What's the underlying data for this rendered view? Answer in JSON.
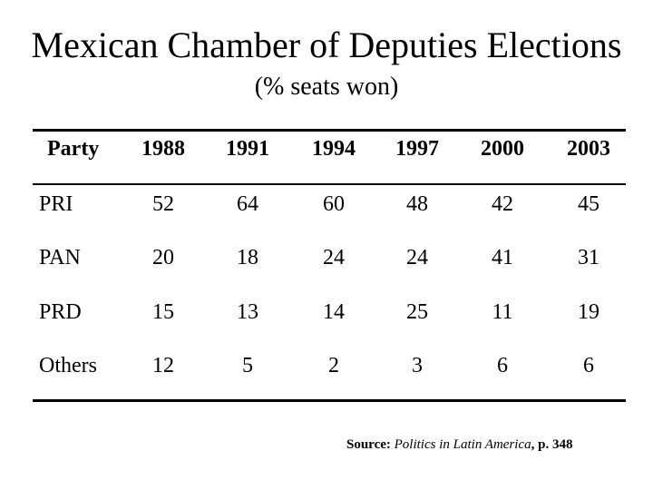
{
  "chart_data": {
    "type": "table",
    "title": "Mexican Chamber of Deputies Elections",
    "subtitle": "(% seats won)",
    "header_label": "Party",
    "columns": [
      "1988",
      "1991",
      "1994",
      "1997",
      "2000",
      "2003"
    ],
    "rows": [
      {
        "party": "PRI",
        "values": [
          52,
          64,
          60,
          48,
          42,
          45
        ]
      },
      {
        "party": "PAN",
        "values": [
          20,
          18,
          24,
          24,
          41,
          31
        ]
      },
      {
        "party": "PRD",
        "values": [
          15,
          13,
          14,
          25,
          11,
          19
        ]
      },
      {
        "party": "Others",
        "values": [
          12,
          5,
          2,
          3,
          6,
          6
        ]
      }
    ],
    "source": {
      "label": "Source:",
      "work": "Politics in Latin America",
      "page": ", p. 348"
    }
  },
  "colors": {
    "text": "#000000",
    "background": "#ffffff",
    "rule": "#000000"
  }
}
